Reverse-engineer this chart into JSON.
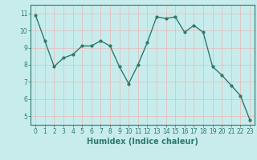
{
  "x": [
    0,
    1,
    2,
    3,
    4,
    5,
    6,
    7,
    8,
    9,
    10,
    11,
    12,
    13,
    14,
    15,
    16,
    17,
    18,
    19,
    20,
    21,
    22,
    23
  ],
  "y": [
    10.9,
    9.4,
    7.9,
    8.4,
    8.6,
    9.1,
    9.1,
    9.4,
    9.1,
    7.9,
    6.9,
    8.0,
    9.3,
    10.8,
    10.7,
    10.8,
    9.9,
    10.3,
    9.9,
    7.9,
    7.4,
    6.8,
    6.2,
    4.8
  ],
  "line_color": "#2d7a6e",
  "marker": "o",
  "marker_size": 2.0,
  "linewidth": 1.0,
  "xlabel": "Humidex (Indice chaleur)",
  "xlabel_fontsize": 7,
  "background_color": "#c8ecec",
  "grid_color": "#e8b8b8",
  "plot_bg": "#c8ecec",
  "ylim": [
    4.5,
    11.5
  ],
  "xlim": [
    -0.5,
    23.5
  ],
  "yticks": [
    5,
    6,
    7,
    8,
    9,
    10,
    11
  ],
  "xticks": [
    0,
    1,
    2,
    3,
    4,
    5,
    6,
    7,
    8,
    9,
    10,
    11,
    12,
    13,
    14,
    15,
    16,
    17,
    18,
    19,
    20,
    21,
    22,
    23
  ],
  "tick_fontsize": 5.5,
  "tick_color": "#2d7a6e"
}
